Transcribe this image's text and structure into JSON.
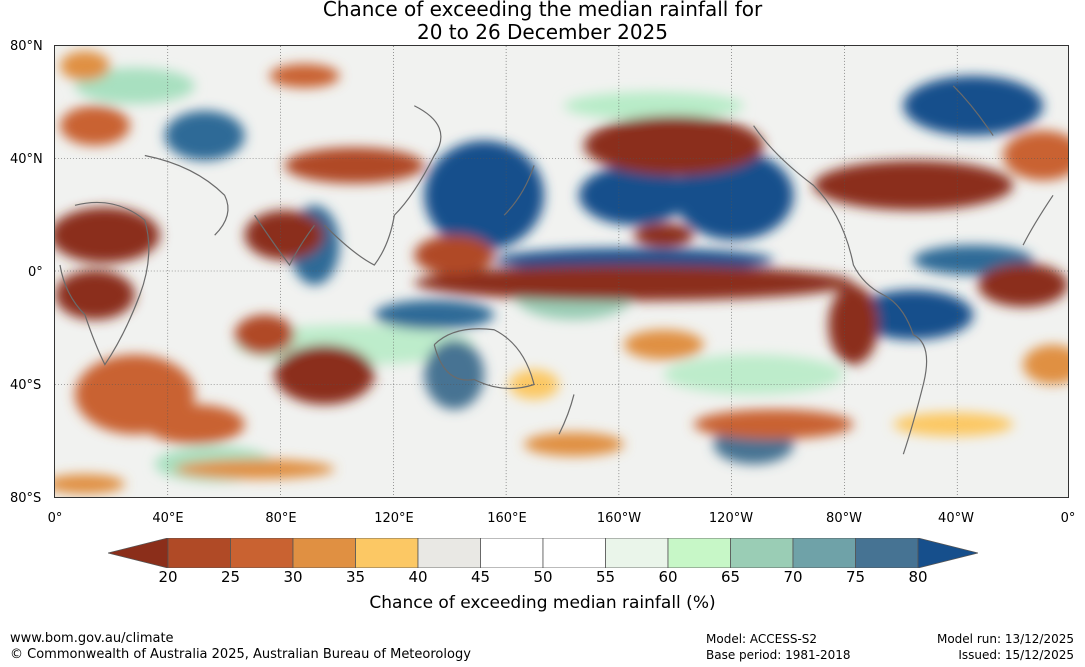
{
  "title": {
    "line1": "Chance of exceeding the median rainfall for",
    "line2": "20 to 26 December 2025"
  },
  "map": {
    "lat_labels": [
      "80°N",
      "40°N",
      "0°",
      "40°S",
      "80°S"
    ],
    "lon_labels": [
      "0°",
      "40°E",
      "80°E",
      "120°E",
      "160°E",
      "160°W",
      "120°W",
      "80°W",
      "40°W",
      "0°"
    ]
  },
  "colorbar": {
    "ticks": [
      "20",
      "25",
      "30",
      "35",
      "40",
      "45",
      "50",
      "55",
      "60",
      "65",
      "70",
      "75",
      "80"
    ],
    "colors": [
      "#8b2e1a",
      "#b04a26",
      "#c96231",
      "#e09042",
      "#fcc864",
      "#e9e8e4",
      "#ffffff",
      "#ffffff",
      "#eaf5ea",
      "#c7f7c7",
      "#9acdb5",
      "#6fa2a8",
      "#467393",
      "#164f8c"
    ],
    "title": "Chance of exceeding median rainfall (%)"
  },
  "footer": {
    "website": "www.bom.gov.au/climate",
    "copyright": "© Commonwealth of Australia 2025, Australian Bureau of Meteorology",
    "model": "Model: ACCESS-S2",
    "base_period": "Base period: 1981-2018",
    "model_run": "Model run: 13/12/2025",
    "issued": "Issued: 15/12/2025"
  }
}
